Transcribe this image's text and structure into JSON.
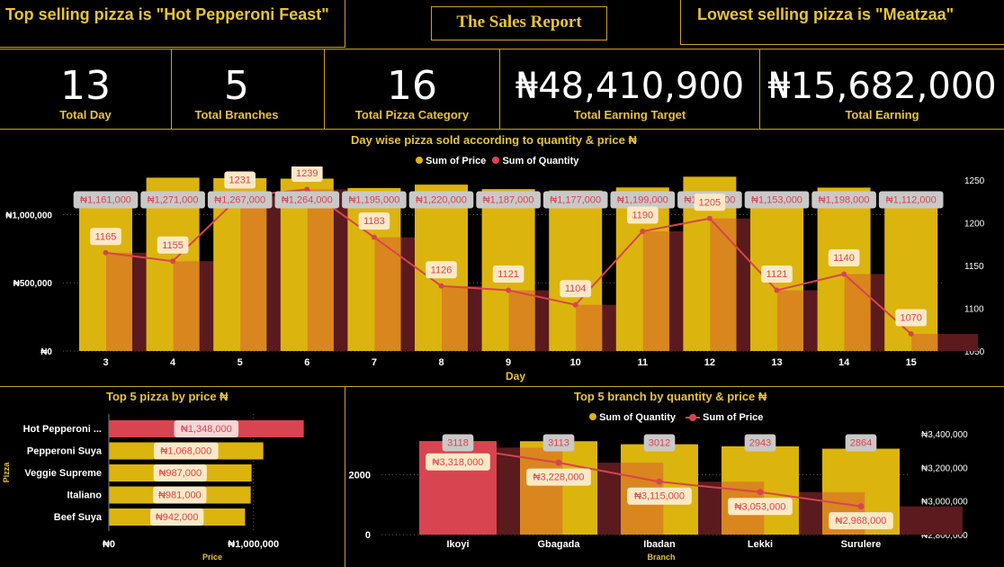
{
  "header": {
    "top_selling": "Top selling pizza is \"Hot Pepperoni Feast\"",
    "title": "The Sales Report",
    "lowest_selling": "Lowest selling pizza is \"Meatzaa\""
  },
  "kpis": [
    {
      "value": "13",
      "label": "Total Day"
    },
    {
      "value": "5",
      "label": "Total Branches"
    },
    {
      "value": "16",
      "label": "Total Pizza Category"
    },
    {
      "value": "₦48,410,900",
      "label": "Total Earning Target"
    },
    {
      "value": "₦15,682,000",
      "label": "Total Earning"
    }
  ],
  "colors": {
    "gold": "#e8c33a",
    "bar_gold": "#dcb40e",
    "orange": "#d9861e",
    "red": "#d8444f",
    "dark_red": "#5a1a1e"
  },
  "chart_data": [
    {
      "type": "bar",
      "title": "Day wise pizza sold according to quantity & price ₦",
      "xlabel": "Day",
      "categories": [
        "3",
        "4",
        "5",
        "6",
        "7",
        "8",
        "9",
        "10",
        "11",
        "12",
        "13",
        "14",
        "15"
      ],
      "legend": [
        "Sum of Price",
        "Sum of Quantity"
      ],
      "series": [
        {
          "name": "Sum of Price",
          "type": "bar",
          "values": [
            1161000,
            1271000,
            1267000,
            1264000,
            1195000,
            1220000,
            1187000,
            1177000,
            1199000,
            1278000,
            1153000,
            1198000,
            1112000
          ],
          "labels": [
            "₦1,161,000",
            "₦1,271,000",
            "₦1,267,000",
            "₦1,264,000",
            "₦1,195,000",
            "₦1,220,000",
            "₦1,187,000",
            "₦1,177,000",
            "₦1,199,000",
            "₦1,278,000",
            "₦1,153,000",
            "₦1,198,000",
            "₦1,112,000"
          ]
        },
        {
          "name": "Sum of Quantity",
          "type": "line",
          "values": [
            1165,
            1155,
            1231,
            1239,
            1183,
            1126,
            1121,
            1104,
            1190,
            1205,
            1121,
            1140,
            1070
          ]
        }
      ],
      "y_ticks": [
        "₦0",
        "₦500,000",
        "₦1,000,000"
      ],
      "y2_ticks": [
        "1050",
        "1100",
        "1150",
        "1200",
        "1250"
      ],
      "ylim": [
        0,
        1300000
      ],
      "y2lim": [
        1050,
        1250
      ]
    },
    {
      "type": "bar",
      "title": "Top 5 pizza by price ₦",
      "orientation": "horizontal",
      "ylabel": "Pizza",
      "xlabel": "Price",
      "categories": [
        "Hot Pepperoni ...",
        "Pepperoni Suya",
        "Veggie Supreme",
        "Italiano",
        "Beef Suya"
      ],
      "values": [
        1348000,
        1068000,
        987000,
        981000,
        942000
      ],
      "labels": [
        "₦1,348,000",
        "₦1,068,000",
        "₦987,000",
        "₦981,000",
        "₦942,000"
      ],
      "x_ticks": [
        "₦0",
        "₦1,000,000"
      ],
      "xlim": [
        0,
        1400000
      ]
    },
    {
      "type": "bar",
      "title": "Top 5 branch by quantity & price ₦",
      "xlabel": "Branch",
      "categories": [
        "Ikoyi",
        "Gbagada",
        "Ibadan",
        "Lekki",
        "Surulere"
      ],
      "legend": [
        "Sum of Quantity",
        "Sum of Price"
      ],
      "series": [
        {
          "name": "Sum of Quantity",
          "type": "bar",
          "values": [
            3118,
            3113,
            3012,
            2943,
            2864
          ]
        },
        {
          "name": "Sum of Price",
          "type": "line",
          "values": [
            3318000,
            3228000,
            3115000,
            3053000,
            2968000
          ],
          "labels": [
            "₦3,318,000",
            "₦3,228,000",
            "₦3,115,000",
            "₦3,053,000",
            "₦2,968,000"
          ]
        }
      ],
      "y_ticks": [
        "0",
        "2000"
      ],
      "y2_ticks": [
        "₦2,800,000",
        "₦3,000,000",
        "₦3,200,000",
        "₦3,400,000"
      ],
      "ylim": [
        0,
        3300
      ],
      "y2lim": [
        2800000,
        3400000
      ]
    }
  ]
}
